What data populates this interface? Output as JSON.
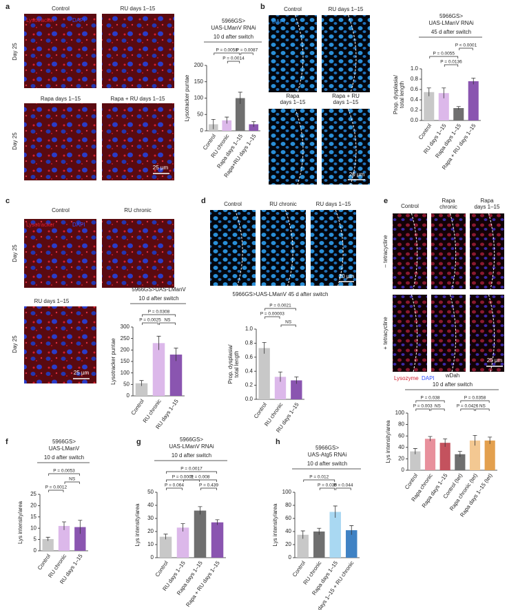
{
  "panel_labels": [
    "a",
    "b",
    "c",
    "d",
    "e",
    "f",
    "g",
    "h"
  ],
  "micrographs": [
    {
      "labels": [
        "Control",
        "RU days 1–15",
        "Rapa days 1–15",
        "Rapa + RU days 1–15"
      ],
      "row_labels": [
        "Day 25",
        "Day 25"
      ],
      "stains": [
        "Lysotracker",
        "DAPI"
      ],
      "scale_bar": "25 µm"
    },
    {
      "labels": [
        "Control",
        "RU days 1–15",
        [
          "Rapa",
          "days 1–15"
        ],
        [
          "Rapa + RU",
          "days 1–15"
        ]
      ],
      "row_labels": [],
      "stains": [
        "DAPI"
      ],
      "scale_bar": "20 µm"
    },
    {
      "labels": [
        "Control",
        "RU chronic",
        "RU days 1–15"
      ],
      "row_labels": [
        "Day 25",
        "Day 25"
      ],
      "stains": [
        "Lysotracker",
        "DAPI"
      ],
      "scale_bar": "25 µm"
    },
    {
      "labels": [
        "Control",
        "RU chronic",
        "RU days 1–15"
      ],
      "row_labels": [],
      "stains": [],
      "scale_bar": "20 µm"
    },
    {
      "labels": [
        "Control",
        [
          "Rapa",
          "chronic"
        ],
        [
          "Rapa",
          "days 1–15"
        ]
      ],
      "row_labels": [
        "– tetracycline",
        "+ tetracycline"
      ],
      "stains": [
        "Lysozyme",
        "DAPI"
      ],
      "scale_bar": "25 µm"
    }
  ],
  "chart_data": [
    {
      "type": "bar",
      "title": [
        "5966GS>",
        "UAS-LManV RNAi"
      ],
      "header": "10 d after switch",
      "ylabel": [
        "Lysotracker puntae"
      ],
      "categories": [
        "Control",
        "RU chronic",
        "Rapa days 1–15",
        "Rapa+RU days 1–15"
      ],
      "values": [
        20,
        32,
        100,
        20
      ],
      "errors": [
        15,
        10,
        18,
        8
      ],
      "colors": [
        "#c8c8c8",
        "#dcb8ea",
        "#6f6f6f",
        "#8a55b0"
      ],
      "ylim": [
        0,
        200
      ],
      "yticks": [
        0,
        50,
        100,
        150,
        200
      ],
      "brackets": [
        [
          {
            "label": "P = 0.0014",
            "from": 1,
            "to": 2
          }
        ],
        [
          {
            "label": "P = 0.0058",
            "from": 0,
            "to": 2
          },
          {
            "label": "P = 0.0087",
            "from": 2,
            "to": 3
          }
        ]
      ]
    },
    {
      "type": "bar",
      "title": [
        "5966GS>",
        "UAS-LManV RNAi"
      ],
      "header": "45 d after switch",
      "ylabel": [
        "Prop. dysplasia/",
        "total length"
      ],
      "categories": [
        "Control",
        "RU days 1–15",
        "Rapa days 1–15",
        "Rapa + RU days 1–15"
      ],
      "values": [
        0.55,
        0.53,
        0.24,
        0.76
      ],
      "errors": [
        0.08,
        0.1,
        0.03,
        0.06
      ],
      "colors": [
        "#c8c8c8",
        "#dcb8ea",
        "#6f6f6f",
        "#8a55b0"
      ],
      "ylim": [
        0,
        1
      ],
      "yticks": [
        {
          "value": 0,
          "label": "0.0"
        },
        0.2,
        0.4,
        0.6,
        0.8,
        {
          "value": 1,
          "label": "1.0"
        }
      ],
      "brackets": [
        [
          {
            "label": "P = 0.0136",
            "from": 1,
            "to": 2
          }
        ],
        [
          {
            "label": "P = 0.0055",
            "from": 0,
            "to": 2
          }
        ],
        [
          {
            "label": "P < 0.0001",
            "from": 2,
            "to": 3
          }
        ]
      ]
    },
    {
      "type": "bar",
      "title": [
        "5966GS>UAS-LManV"
      ],
      "header": "10 d after switch",
      "ylabel": [
        "Lysotracker puntae"
      ],
      "categories": [
        "Control",
        "RU chronic",
        "RU days 1–15"
      ],
      "values": [
        55,
        230,
        180
      ],
      "errors": [
        12,
        30,
        28
      ],
      "colors": [
        "#c8c8c8",
        "#dcb8ea",
        "#8a55b0"
      ],
      "ylim": [
        0,
        300
      ],
      "yticks": [
        0,
        50,
        100,
        150,
        200,
        250,
        300
      ],
      "brackets": [
        [
          {
            "label": "P = 0.0025",
            "from": 0,
            "to": 1
          },
          {
            "label": "NS",
            "from": 1,
            "to": 2
          }
        ],
        [
          {
            "label": "P = 0.0308",
            "from": 0,
            "to": 2
          }
        ]
      ]
    },
    {
      "type": "bar",
      "title": [
        "5966GS>UAS-LManV   45 d after switch"
      ],
      "ylabel": [
        "Prop. dysplasia/",
        "total length"
      ],
      "categories": [
        "Control",
        "RU chronic",
        "RU days 1–15"
      ],
      "values": [
        0.73,
        0.32,
        0.27
      ],
      "errors": [
        0.08,
        0.07,
        0.05
      ],
      "colors": [
        "#c8c8c8",
        "#dcb8ea",
        "#8a55b0"
      ],
      "ylim": [
        0,
        1
      ],
      "yticks": [
        {
          "value": 0,
          "label": "0.0"
        },
        0.2,
        0.4,
        0.6,
        0.8,
        {
          "value": 1,
          "label": "1.0"
        }
      ],
      "brackets": [
        [
          {
            "label": "NS",
            "from": 1,
            "to": 2
          }
        ],
        [
          {
            "label": "P = 0.00003",
            "from": 0,
            "to": 1
          }
        ],
        [
          {
            "label": "P = 0.0021",
            "from": 0,
            "to": 2
          }
        ]
      ]
    },
    {
      "type": "bar",
      "title": [
        "wDah"
      ],
      "header": "10 d after switch",
      "ylabel": [
        "Lys intensity/area"
      ],
      "categories": [
        "Control",
        "Rapa chronic",
        "Rapa days 1–15",
        "Control (tet)",
        "Rapa chronic (tet)",
        "Rapa days 1–15 (tet)"
      ],
      "values": [
        33,
        55,
        48,
        28,
        52,
        52
      ],
      "errors": [
        5,
        4,
        7,
        5,
        9,
        6
      ],
      "colors": [
        "#c8c8c8",
        "#e8909c",
        "#c4525e",
        "#6f6f6f",
        "#f3c892",
        "#e3a04e"
      ],
      "ylim": [
        0,
        100
      ],
      "yticks": [
        0,
        20,
        40,
        60,
        80,
        100
      ],
      "brackets": [
        [
          {
            "label": "P = 0.003",
            "from": 0,
            "to": 1
          },
          {
            "label": "NS",
            "from": 1,
            "to": 2
          },
          {
            "label": "P = 0.0426",
            "from": 3,
            "to": 4
          },
          {
            "label": "NS",
            "from": 4,
            "to": 5
          }
        ],
        [
          {
            "label": "P = 0.038",
            "from": 0,
            "to": 2
          },
          {
            "label": "P = 0.0358",
            "from": 3,
            "to": 5
          }
        ]
      ]
    },
    {
      "type": "bar",
      "title": [
        "5966GS>",
        "UAS-LManV"
      ],
      "header": "10 d after switch",
      "ylabel": [
        "Lys intensity/area"
      ],
      "categories": [
        "Control",
        "RU chronic",
        "RU days 1–15"
      ],
      "values": [
        5.2,
        11,
        10.5
      ],
      "errors": [
        0.8,
        1.8,
        3
      ],
      "colors": [
        "#c8c8c8",
        "#dcb8ea",
        "#8a55b0"
      ],
      "ylim": [
        0,
        25
      ],
      "yticks": [
        0,
        5,
        10,
        15,
        20,
        25
      ],
      "brackets": [
        [
          {
            "label": "P = 0.0012",
            "from": 0,
            "to": 1
          }
        ],
        [
          {
            "label": "NS",
            "from": 1,
            "to": 2
          }
        ],
        [
          {
            "label": "P = 0.0053",
            "from": 0,
            "to": 2
          }
        ]
      ]
    },
    {
      "type": "bar",
      "title": [
        "5966GS>",
        "UAS-LManV RNAi"
      ],
      "header": "10 d after switch",
      "ylabel": [
        "Lys intensity/area"
      ],
      "categories": [
        "Control",
        "RU days 1–15",
        "Rapa days 1–15",
        "Rapa + RU days 1–15"
      ],
      "values": [
        16,
        23,
        36,
        27
      ],
      "errors": [
        2,
        3,
        3,
        2
      ],
      "colors": [
        "#c8c8c8",
        "#dcb8ea",
        "#6f6f6f",
        "#8a55b0"
      ],
      "ylim": [
        0,
        50
      ],
      "yticks": [
        0,
        10,
        20,
        30,
        40,
        50
      ],
      "brackets": [
        [
          {
            "label": "P = 0.064",
            "from": 0,
            "to": 1
          },
          {
            "label": "P = 0.439",
            "from": 2,
            "to": 3
          }
        ],
        [
          {
            "label": "P = 0.0001",
            "from": 0,
            "to": 2
          },
          {
            "label": "P = 0.008",
            "from": 1,
            "to": 3
          }
        ],
        [
          {
            "label": "P = 0.0017",
            "from": 0,
            "to": 3
          }
        ]
      ]
    },
    {
      "type": "bar",
      "title": [
        "5966GS>",
        "UAS-Atg5 RNAi"
      ],
      "header": "10 d after switch",
      "ylabel": [
        "Lys intensity/area"
      ],
      "categories": [
        "Control",
        "RU chronic",
        "Rapa days 1–15",
        "Rapa days 1–15 + RU chronic"
      ],
      "values": [
        35,
        40,
        70,
        42
      ],
      "errors": [
        6,
        5,
        9,
        7
      ],
      "colors": [
        "#c8c8c8",
        "#6f6f6f",
        "#a9d8f2",
        "#3f82c4"
      ],
      "ylim": [
        0,
        100
      ],
      "yticks": [
        0,
        20,
        40,
        60,
        80,
        100
      ],
      "brackets": [
        [
          {
            "label": "P = 0.035",
            "from": 1,
            "to": 2
          },
          {
            "label": "P = 0.044",
            "from": 2,
            "to": 3
          }
        ],
        [
          {
            "label": "P = 0.012",
            "from": 0,
            "to": 2
          }
        ]
      ]
    }
  ]
}
